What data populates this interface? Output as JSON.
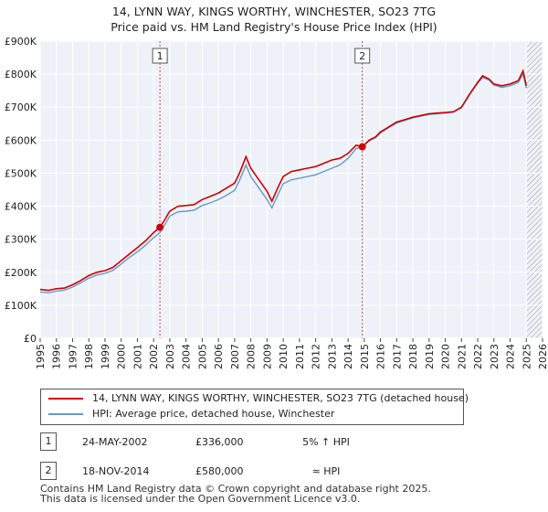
{
  "chart_data": {
    "type": "line",
    "title": "14, LYNN WAY, KINGS WORTHY, WINCHESTER, SO23 7TG",
    "subtitle": "Price paid vs. HM Land Registry's House Price Index (HPI)",
    "xlim": [
      1995,
      2026
    ],
    "ylim": [
      0,
      900000
    ],
    "y_ticks": [
      {
        "value": 0,
        "label": "£0"
      },
      {
        "value": 100000,
        "label": "£100K"
      },
      {
        "value": 200000,
        "label": "£200K"
      },
      {
        "value": 300000,
        "label": "£300K"
      },
      {
        "value": 400000,
        "label": "£400K"
      },
      {
        "value": 500000,
        "label": "£500K"
      },
      {
        "value": 600000,
        "label": "£600K"
      },
      {
        "value": 700000,
        "label": "£700K"
      },
      {
        "value": 800000,
        "label": "£800K"
      },
      {
        "value": 900000,
        "label": "£900K"
      }
    ],
    "x_ticks": [
      "1995",
      "1996",
      "1997",
      "1998",
      "1999",
      "2000",
      "2001",
      "2002",
      "2003",
      "2004",
      "2005",
      "2006",
      "2007",
      "2008",
      "2009",
      "2010",
      "2011",
      "2012",
      "2013",
      "2014",
      "2015",
      "2016",
      "2017",
      "2018",
      "2019",
      "2020",
      "2021",
      "2022",
      "2023",
      "2024",
      "2025",
      "2026"
    ],
    "grid": true,
    "forecast_start": 2025.0,
    "series": [
      {
        "name": "14, LYNN WAY, KINGS WORTHY, WINCHESTER, SO23 7TG (detached house)",
        "color": "#cc0000",
        "x": [
          1995.0,
          1995.5,
          1996.0,
          1996.5,
          1997.0,
          1997.5,
          1998.0,
          1998.5,
          1999.0,
          1999.5,
          2000.0,
          2000.5,
          2001.0,
          2001.5,
          2002.0,
          2002.39,
          2002.7,
          2003.0,
          2003.5,
          2004.0,
          2004.5,
          2005.0,
          2005.5,
          2006.0,
          2006.5,
          2007.0,
          2007.3,
          2007.7,
          2008.0,
          2008.5,
          2009.0,
          2009.3,
          2009.7,
          2010.0,
          2010.5,
          2011.0,
          2011.5,
          2012.0,
          2012.5,
          2013.0,
          2013.5,
          2014.0,
          2014.5,
          2014.88,
          2015.3,
          2015.7,
          2016.0,
          2016.5,
          2017.0,
          2017.5,
          2018.0,
          2018.5,
          2019.0,
          2019.5,
          2020.0,
          2020.5,
          2021.0,
          2021.5,
          2022.0,
          2022.3,
          2022.7,
          2023.0,
          2023.5,
          2024.0,
          2024.5,
          2024.8,
          2025.0
        ],
        "values": [
          148000,
          145000,
          150000,
          152000,
          162000,
          175000,
          190000,
          200000,
          205000,
          215000,
          235000,
          255000,
          275000,
          295000,
          320000,
          336000,
          360000,
          385000,
          400000,
          402000,
          405000,
          420000,
          430000,
          440000,
          455000,
          470000,
          500000,
          550000,
          515000,
          480000,
          445000,
          415000,
          460000,
          490000,
          505000,
          510000,
          515000,
          520000,
          530000,
          540000,
          545000,
          560000,
          585000,
          580000,
          600000,
          610000,
          625000,
          640000,
          655000,
          662000,
          670000,
          675000,
          680000,
          682000,
          684000,
          686000,
          700000,
          740000,
          775000,
          795000,
          785000,
          770000,
          765000,
          770000,
          780000,
          810000,
          765000
        ]
      },
      {
        "name": "HPI: Average price, detached house, Winchester",
        "color": "#6699cc",
        "x": [
          1995.0,
          1995.5,
          1996.0,
          1996.5,
          1997.0,
          1997.5,
          1998.0,
          1998.5,
          1999.0,
          1999.5,
          2000.0,
          2000.5,
          2001.0,
          2001.5,
          2002.0,
          2002.39,
          2002.7,
          2003.0,
          2003.5,
          2004.0,
          2004.5,
          2005.0,
          2005.5,
          2006.0,
          2006.5,
          2007.0,
          2007.3,
          2007.7,
          2008.0,
          2008.5,
          2009.0,
          2009.3,
          2009.7,
          2010.0,
          2010.5,
          2011.0,
          2011.5,
          2012.0,
          2012.5,
          2013.0,
          2013.5,
          2014.0,
          2014.5,
          2014.88,
          2015.3,
          2015.7,
          2016.0,
          2016.5,
          2017.0,
          2017.5,
          2018.0,
          2018.5,
          2019.0,
          2019.5,
          2020.0,
          2020.5,
          2021.0,
          2021.5,
          2022.0,
          2022.3,
          2022.7,
          2023.0,
          2023.5,
          2024.0,
          2024.5,
          2024.8,
          2025.0
        ],
        "values": [
          140000,
          138000,
          143000,
          146000,
          155000,
          168000,
          182000,
          192000,
          197000,
          206000,
          225000,
          245000,
          262000,
          282000,
          305000,
          320000,
          345000,
          370000,
          383000,
          385000,
          388000,
          402000,
          410000,
          420000,
          433000,
          448000,
          478000,
          525000,
          490000,
          455000,
          420000,
          395000,
          438000,
          468000,
          480000,
          485000,
          490000,
          495000,
          505000,
          515000,
          525000,
          545000,
          575000,
          580000,
          598000,
          608000,
          622000,
          638000,
          652000,
          660000,
          668000,
          673000,
          678000,
          680000,
          682000,
          685000,
          698000,
          738000,
          772000,
          790000,
          782000,
          767000,
          760000,
          765000,
          775000,
          800000,
          758000
        ]
      }
    ],
    "sales": [
      {
        "label": "1",
        "x": 2002.39,
        "value": 336000,
        "date": "24-MAY-2002",
        "price": "£336,000",
        "hpi": "5% ↑ HPI"
      },
      {
        "label": "2",
        "x": 2014.88,
        "value": 580000,
        "date": "18-NOV-2014",
        "price": "£580,000",
        "hpi": "≈ HPI"
      }
    ]
  },
  "legend": {
    "property_label": "14, LYNN WAY, KINGS WORTHY, WINCHESTER, SO23 7TG (detached house)",
    "hpi_label": "HPI: Average price, detached house, Winchester"
  },
  "footer": {
    "line1": "Contains HM Land Registry data © Crown copyright and database right 2025.",
    "line2": "This data is licensed under the Open Government Licence v3.0."
  },
  "colors": {
    "property": "#cc0000",
    "hpi": "#6699cc",
    "plot_bg": "#eef2f8",
    "grid": "#ffffff",
    "marker_line": "#dd4444"
  }
}
